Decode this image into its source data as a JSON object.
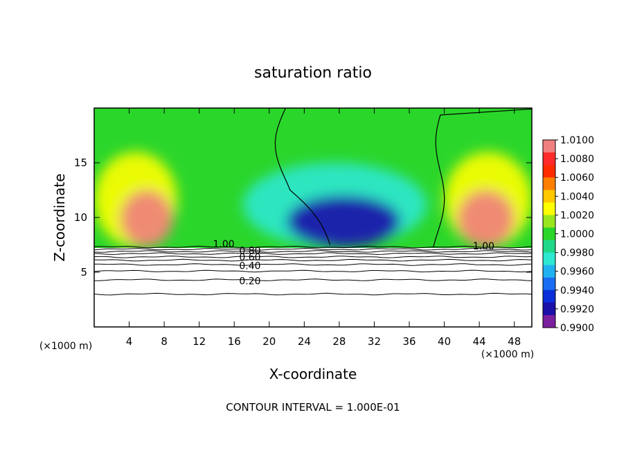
{
  "chart_data": {
    "type": "heatmap",
    "title": "saturation ratio",
    "xlabel": "X-coordinate",
    "ylabel": "Z-coordinate",
    "x_unit": "(×1000 m)",
    "xlim": [
      0,
      50
    ],
    "ylim": [
      0,
      20
    ],
    "x_ticks": [
      4,
      8,
      12,
      16,
      20,
      24,
      28,
      32,
      36,
      40,
      44,
      48
    ],
    "y_ticks": [
      5,
      10,
      15
    ],
    "footnote": "CONTOUR INTERVAL = 1.000E-01",
    "colorbar": {
      "labels": [
        "1.0100",
        "1.0080",
        "1.0060",
        "1.0040",
        "1.0020",
        "1.0000",
        "0.9980",
        "0.9960",
        "0.9940",
        "0.9920",
        "0.9900"
      ],
      "min": 0.99,
      "max": 1.01,
      "colors": [
        "#7a1f9e",
        "#1b10a8",
        "#0a2fd8",
        "#1a6cf2",
        "#20b2f0",
        "#2de8d0",
        "#20d88a",
        "#2bd62b",
        "#9ae61e",
        "#ffff00",
        "#ffc800",
        "#ff7f00",
        "#ff2a00",
        "#ff2a2a",
        "#f08080"
      ]
    },
    "contour_labels": [
      {
        "text": "1.00",
        "x": 14.8,
        "y": 7.6
      },
      {
        "text": "0.80",
        "x": 17.8,
        "y": 7.0
      },
      {
        "text": "0.60",
        "x": 17.8,
        "y": 6.4
      },
      {
        "text": "0.40",
        "x": 17.8,
        "y": 5.6
      },
      {
        "text": "0.20",
        "x": 17.8,
        "y": 4.2
      },
      {
        "text": "1.00",
        "x": 44.5,
        "y": 7.4
      }
    ],
    "contour_levels": [
      3.0,
      4.3,
      5.1,
      5.7,
      6.1,
      6.4,
      6.7,
      6.9,
      7.1,
      7.3
    ],
    "field_regions": [
      {
        "value": 1.0025,
        "x_range": [
          0,
          9.5
        ],
        "z_range": [
          7.3,
          16
        ]
      },
      {
        "value": 1.009,
        "x_range": [
          3,
          9
        ],
        "z_range": [
          7.3,
          12.5
        ]
      },
      {
        "value": 0.997,
        "x_range": [
          17,
          38
        ],
        "z_range": [
          7.3,
          15
        ]
      },
      {
        "value": 0.992,
        "x_range": [
          22,
          35
        ],
        "z_range": [
          7.3,
          12
        ]
      },
      {
        "value": 1.0025,
        "x_range": [
          40,
          50
        ],
        "z_range": [
          7.3,
          16
        ]
      },
      {
        "value": 1.009,
        "x_range": [
          41.5,
          48
        ],
        "z_range": [
          7.3,
          12.5
        ]
      }
    ]
  }
}
